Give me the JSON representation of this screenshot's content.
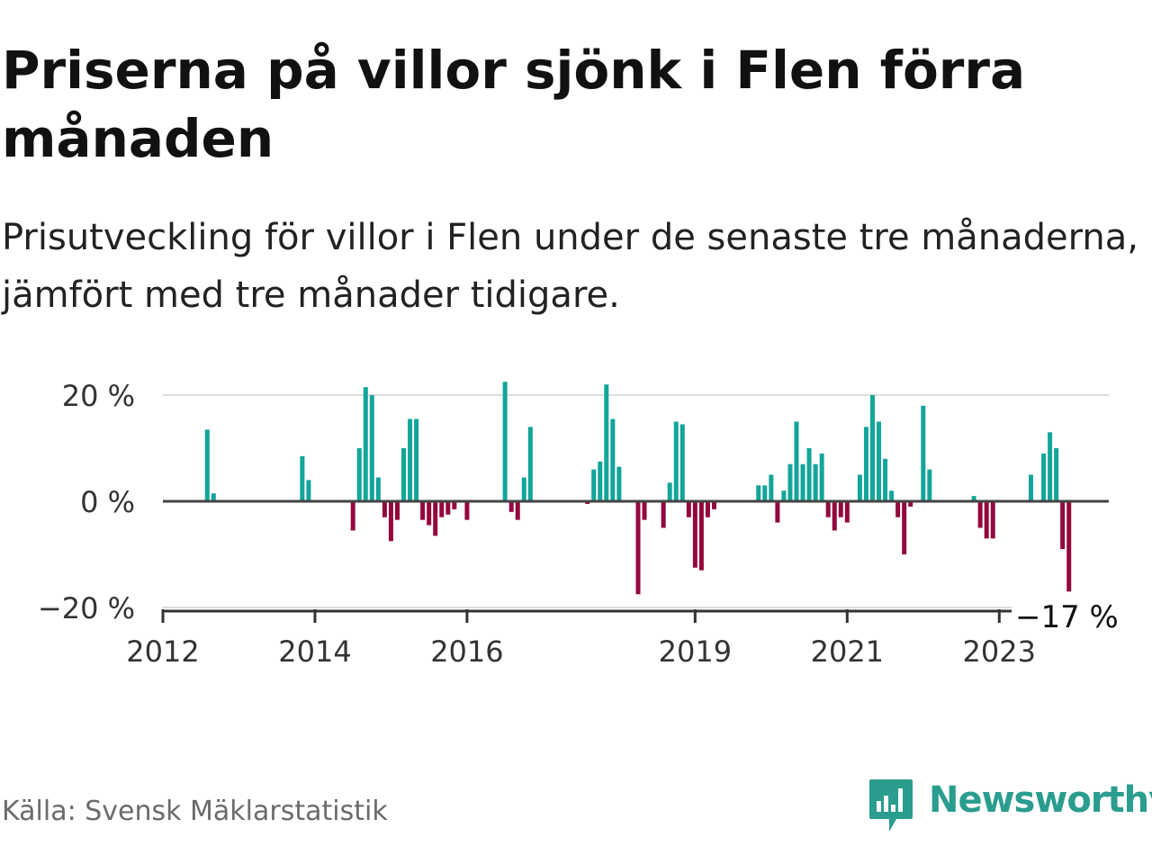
{
  "header": {
    "title": "Priserna på villor sjönk i Flen förra månaden",
    "subtitle": "Prisutveckling för villor i Flen under de senaste tre månaderna, jämfört med tre månader tidigare."
  },
  "footer": {
    "source": "Källa: Svensk Mäklarstatistik",
    "brand": "Newsworthy"
  },
  "colors": {
    "positive": "#12a59a",
    "negative": "#93073e",
    "brand": "#2a9d8f",
    "grid": "#dddddd",
    "zero_line": "#444444"
  },
  "icons": {
    "logo": "newsworthy-bar-chart-icon"
  },
  "chart_data": {
    "type": "bar",
    "x_type": "monthly dates",
    "series": [
      {
        "values": [
          {
            "x": "2012-08",
            "y": 13.5
          },
          {
            "x": "2012-09",
            "y": 1.5
          },
          {
            "x": "2013-11",
            "y": 8.5
          },
          {
            "x": "2013-12",
            "y": 4
          },
          {
            "x": "2014-07",
            "y": -5.5
          },
          {
            "x": "2014-08",
            "y": 10
          },
          {
            "x": "2014-09",
            "y": 21.5
          },
          {
            "x": "2014-10",
            "y": 20
          },
          {
            "x": "2014-11",
            "y": 4.5
          },
          {
            "x": "2014-12",
            "y": -3
          },
          {
            "x": "2015-01",
            "y": -7.5
          },
          {
            "x": "2015-02",
            "y": -3.5
          },
          {
            "x": "2015-03",
            "y": 10
          },
          {
            "x": "2015-04",
            "y": 15.5
          },
          {
            "x": "2015-05",
            "y": 15.5
          },
          {
            "x": "2015-06",
            "y": -3.5
          },
          {
            "x": "2015-07",
            "y": -4.5
          },
          {
            "x": "2015-08",
            "y": -6.5
          },
          {
            "x": "2015-09",
            "y": -3
          },
          {
            "x": "2015-10",
            "y": -2.5
          },
          {
            "x": "2015-11",
            "y": -1.5
          },
          {
            "x": "2016-01",
            "y": -3.5
          },
          {
            "x": "2016-07",
            "y": 22.5
          },
          {
            "x": "2016-08",
            "y": -2
          },
          {
            "x": "2016-09",
            "y": -3.5
          },
          {
            "x": "2016-10",
            "y": 4.5
          },
          {
            "x": "2016-11",
            "y": 14
          },
          {
            "x": "2017-08",
            "y": -0.5
          },
          {
            "x": "2017-09",
            "y": 6
          },
          {
            "x": "2017-10",
            "y": 7.5
          },
          {
            "x": "2017-11",
            "y": 22
          },
          {
            "x": "2017-12",
            "y": 15.5
          },
          {
            "x": "2018-01",
            "y": 6.5
          },
          {
            "x": "2018-04",
            "y": -17.5
          },
          {
            "x": "2018-05",
            "y": -3.5
          },
          {
            "x": "2018-08",
            "y": -5
          },
          {
            "x": "2018-09",
            "y": 3.5
          },
          {
            "x": "2018-10",
            "y": 15
          },
          {
            "x": "2018-11",
            "y": 14.5
          },
          {
            "x": "2018-12",
            "y": -3
          },
          {
            "x": "2019-01",
            "y": -12.5
          },
          {
            "x": "2019-02",
            "y": -13
          },
          {
            "x": "2019-03",
            "y": -3
          },
          {
            "x": "2019-04",
            "y": -1.5
          },
          {
            "x": "2019-11",
            "y": 3
          },
          {
            "x": "2019-12",
            "y": 3
          },
          {
            "x": "2020-01",
            "y": 5
          },
          {
            "x": "2020-02",
            "y": -4
          },
          {
            "x": "2020-03",
            "y": 2
          },
          {
            "x": "2020-04",
            "y": 7
          },
          {
            "x": "2020-05",
            "y": 15
          },
          {
            "x": "2020-06",
            "y": 7
          },
          {
            "x": "2020-07",
            "y": 10
          },
          {
            "x": "2020-08",
            "y": 7
          },
          {
            "x": "2020-09",
            "y": 9
          },
          {
            "x": "2020-10",
            "y": -3
          },
          {
            "x": "2020-11",
            "y": -5.5
          },
          {
            "x": "2020-12",
            "y": -3
          },
          {
            "x": "2021-01",
            "y": -4
          },
          {
            "x": "2021-03",
            "y": 5
          },
          {
            "x": "2021-04",
            "y": 14
          },
          {
            "x": "2021-05",
            "y": 20
          },
          {
            "x": "2021-06",
            "y": 15
          },
          {
            "x": "2021-07",
            "y": 8
          },
          {
            "x": "2021-08",
            "y": 2
          },
          {
            "x": "2021-09",
            "y": -3
          },
          {
            "x": "2021-10",
            "y": -10
          },
          {
            "x": "2021-11",
            "y": -1
          },
          {
            "x": "2022-01",
            "y": 18
          },
          {
            "x": "2022-02",
            "y": 6
          },
          {
            "x": "2022-09",
            "y": 1
          },
          {
            "x": "2022-10",
            "y": -5
          },
          {
            "x": "2022-11",
            "y": -7
          },
          {
            "x": "2022-12",
            "y": -7
          },
          {
            "x": "2023-06",
            "y": 5
          },
          {
            "x": "2023-08",
            "y": 9
          },
          {
            "x": "2023-09",
            "y": 13
          },
          {
            "x": "2023-10",
            "y": 10
          },
          {
            "x": "2023-11",
            "y": -9
          },
          {
            "x": "2023-12",
            "y": -17
          }
        ]
      }
    ],
    "y_ticks": [
      20,
      0,
      -20
    ],
    "y_tick_labels": [
      "20 %",
      "0 %",
      "−20 %"
    ],
    "ylim": [
      -21,
      24
    ],
    "x_ticks": [
      "2012-01",
      "2014-01",
      "2016-01",
      "2019-01",
      "2021-01",
      "2023-01"
    ],
    "x_tick_labels": [
      "2012",
      "2014",
      "2016",
      "2019",
      "2021",
      "2023"
    ],
    "annotation": {
      "x": "2023-12",
      "text": "−17 %"
    },
    "grid": true,
    "legend": "none"
  }
}
